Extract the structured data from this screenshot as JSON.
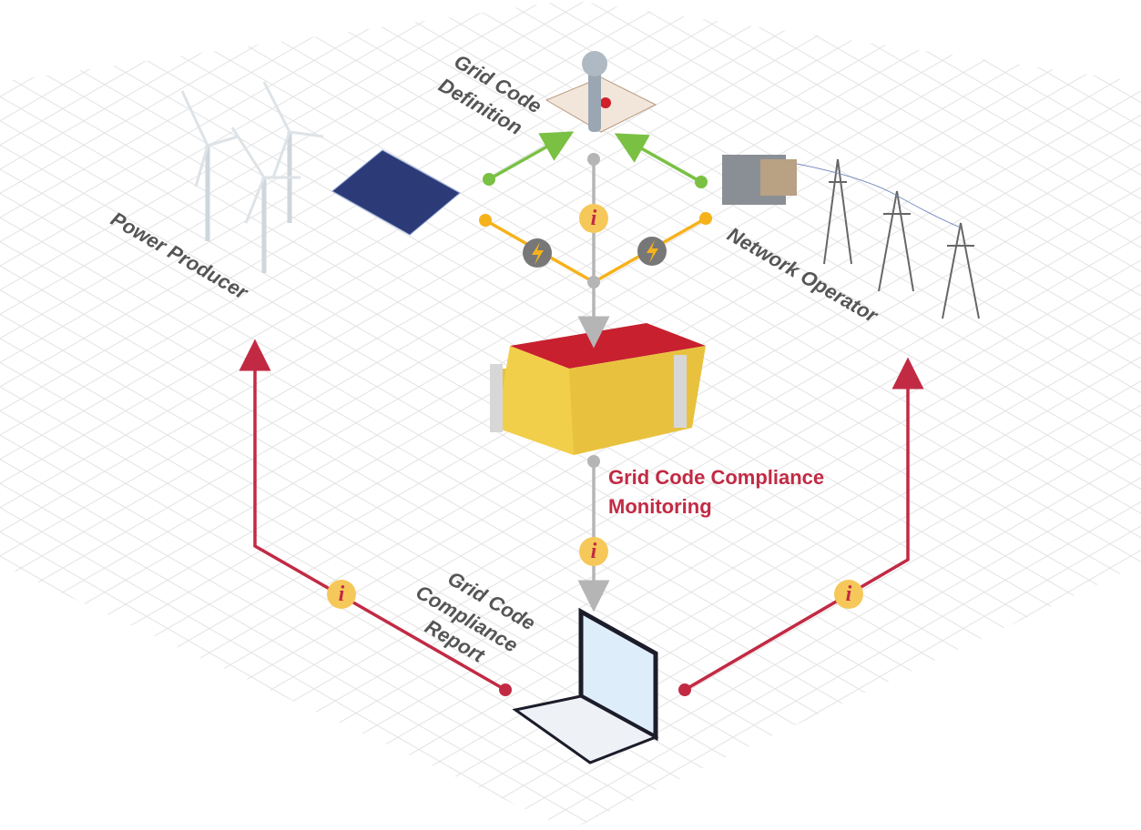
{
  "grid_code_definition": [
    "Grid Code",
    "Definition"
  ],
  "power_producer": "Power Producer",
  "network_operator": "Network Operator",
  "monitoring": [
    "Grid Code Compliance",
    "Monitoring"
  ],
  "report": [
    "Grid Code",
    "Compliance",
    "Report"
  ],
  "info_icon": "i"
}
